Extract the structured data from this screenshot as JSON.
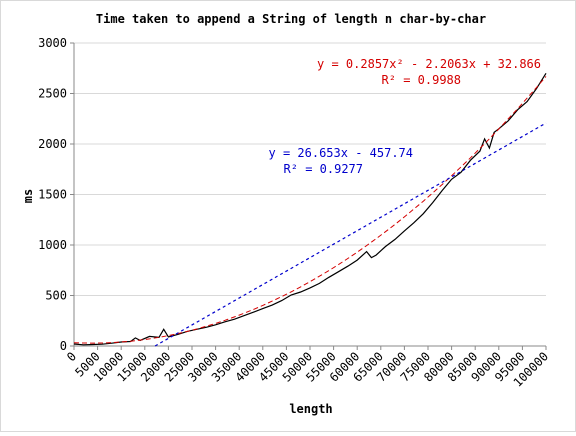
{
  "chart_data": {
    "type": "line",
    "title": "Time taken to append a String of length n char-by-char",
    "xlabel": "length",
    "ylabel": "ms",
    "xlim": [
      0,
      100000
    ],
    "ylim": [
      0,
      3000
    ],
    "x_ticks": [
      "0",
      "5000",
      "10000",
      "15000",
      "20000",
      "25000",
      "30000",
      "35000",
      "40000",
      "45000",
      "50000",
      "55000",
      "60000",
      "65000",
      "70000",
      "75000",
      "80000",
      "85000",
      "90000",
      "95000",
      "100000"
    ],
    "y_ticks": [
      "0",
      "500",
      "1000",
      "1500",
      "2000",
      "2500",
      "3000"
    ],
    "grid": true,
    "series": [
      {
        "style": "solid",
        "color": "#000000",
        "x": [
          0,
          2000,
          4000,
          6000,
          8000,
          10000,
          12000,
          13000,
          14000,
          16000,
          18000,
          19000,
          20000,
          22000,
          24000,
          26000,
          28000,
          30000,
          32000,
          34000,
          36000,
          38000,
          40000,
          42000,
          44000,
          46000,
          48000,
          50000,
          52000,
          54000,
          56000,
          58000,
          60000,
          62000,
          63000,
          64000,
          66000,
          68000,
          70000,
          72000,
          74000,
          76000,
          78000,
          80000,
          82000,
          84000,
          86000,
          87000,
          88000,
          89000,
          90000,
          92000,
          94000,
          96000,
          98000,
          100000
        ],
        "y": [
          20,
          12,
          15,
          18,
          28,
          40,
          45,
          80,
          55,
          95,
          85,
          165,
          90,
          115,
          145,
          165,
          185,
          210,
          240,
          265,
          300,
          335,
          370,
          405,
          450,
          505,
          535,
          575,
          620,
          680,
          735,
          790,
          850,
          935,
          875,
          900,
          985,
          1055,
          1140,
          1220,
          1310,
          1420,
          1540,
          1650,
          1720,
          1840,
          1930,
          2050,
          1960,
          2115,
          2150,
          2230,
          2340,
          2420,
          2550,
          2700
        ]
      },
      {
        "style": "dashed",
        "color": "#d40000",
        "fit": "poly2",
        "equation": "y = 0.2857x² - 2.2063x + 32.866",
        "r2": "R² = 0.9988"
      },
      {
        "style": "dotted",
        "color": "#0000cc",
        "fit": "linear",
        "equation": "y = 26.653x - 457.74",
        "r2": "R² = 0.9277"
      }
    ]
  }
}
